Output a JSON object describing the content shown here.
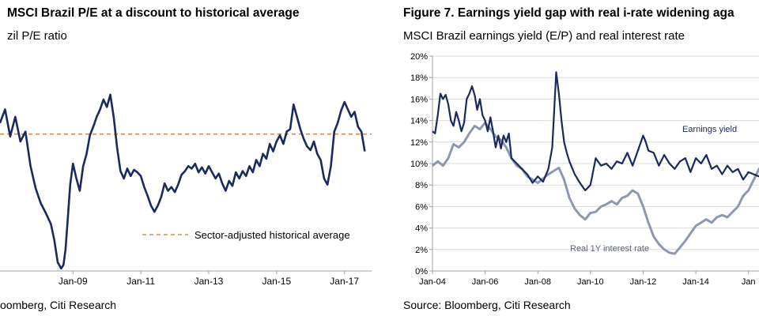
{
  "left": {
    "title": "MSCI Brazil P/E at a discount to historical average",
    "subtitle": "zil P/E ratio",
    "source": "oomberg, Citi Research"
  },
  "right": {
    "title": "Figure 7. Earnings yield gap with real i-rate widening aga",
    "subtitle": "MSCI Brazil earnings yield (E/P) and real interest rate",
    "source": "Source: Bloomberg, Citi Research"
  },
  "chart_data": [
    {
      "type": "line",
      "xlim": [
        2006.85,
        2017.8
      ],
      "ylim": [
        2.5,
        20.5
      ],
      "x_ticks": [
        {
          "label": "Jan-09",
          "x": 2009.0
        },
        {
          "label": "Jan-11",
          "x": 2011.0
        },
        {
          "label": "Jan-13",
          "x": 2013.0
        },
        {
          "label": "Jan-15",
          "x": 2015.0
        },
        {
          "label": "Jan-17",
          "x": 2017.0
        }
      ],
      "colors": {
        "pe": "#1b2a5e",
        "average": "#e8883a"
      },
      "reference_line": {
        "name": "Sector-adjusted historical average",
        "value": 13.6
      },
      "series": [
        {
          "key": "pe",
          "x": [
            2006.85,
            2007.0,
            2007.15,
            2007.3,
            2007.45,
            2007.6,
            2007.75,
            2007.9,
            2008.05,
            2008.2,
            2008.35,
            2008.45,
            2008.55,
            2008.65,
            2008.72,
            2008.78,
            2008.85,
            2008.92,
            2009.0,
            2009.1,
            2009.2,
            2009.3,
            2009.4,
            2009.5,
            2009.6,
            2009.7,
            2009.8,
            2009.9,
            2010.0,
            2010.1,
            2010.2,
            2010.3,
            2010.4,
            2010.5,
            2010.6,
            2010.7,
            2010.8,
            2010.9,
            2011.0,
            2011.1,
            2011.2,
            2011.3,
            2011.4,
            2011.5,
            2011.6,
            2011.7,
            2011.8,
            2011.9,
            2012.0,
            2012.1,
            2012.2,
            2012.3,
            2012.4,
            2012.5,
            2012.6,
            2012.7,
            2012.8,
            2012.9,
            2013.0,
            2013.1,
            2013.2,
            2013.3,
            2013.4,
            2013.5,
            2013.6,
            2013.7,
            2013.8,
            2013.9,
            2014.0,
            2014.1,
            2014.2,
            2014.3,
            2014.4,
            2014.5,
            2014.6,
            2014.7,
            2014.8,
            2014.9,
            2015.0,
            2015.1,
            2015.2,
            2015.3,
            2015.4,
            2015.5,
            2015.6,
            2015.7,
            2015.8,
            2015.9,
            2016.0,
            2016.1,
            2016.2,
            2016.3,
            2016.4,
            2016.5,
            2016.6,
            2016.7,
            2016.8,
            2016.9,
            2017.0,
            2017.1,
            2017.2,
            2017.3,
            2017.4,
            2017.5,
            2017.6
          ],
          "values": [
            14.5,
            15.6,
            13.4,
            15.0,
            13.0,
            13.8,
            11.0,
            9.2,
            8.0,
            7.2,
            6.3,
            5.0,
            3.2,
            2.7,
            3.0,
            4.2,
            6.8,
            9.5,
            11.2,
            10.0,
            9.0,
            11.0,
            12.0,
            13.5,
            14.2,
            15.0,
            15.6,
            16.4,
            15.8,
            16.8,
            15.0,
            12.5,
            10.6,
            10.0,
            10.8,
            10.2,
            10.7,
            10.5,
            10.2,
            9.3,
            8.6,
            7.8,
            7.3,
            7.8,
            8.5,
            9.6,
            9.0,
            9.3,
            8.9,
            9.5,
            10.3,
            10.6,
            11.0,
            10.8,
            11.2,
            10.5,
            10.9,
            10.4,
            11.0,
            10.5,
            10.0,
            10.4,
            9.6,
            9.0,
            9.8,
            9.4,
            10.5,
            10.0,
            10.6,
            10.2,
            11.0,
            10.5,
            11.5,
            11.0,
            12.0,
            11.6,
            12.8,
            12.2,
            13.0,
            13.5,
            12.8,
            13.8,
            14.0,
            16.0,
            15.0,
            14.0,
            13.2,
            12.6,
            12.3,
            13.0,
            12.0,
            11.5,
            10.0,
            9.5,
            11.0,
            13.8,
            14.5,
            15.5,
            16.2,
            15.6,
            15.0,
            15.4,
            14.2,
            13.8,
            12.2
          ]
        }
      ]
    },
    {
      "type": "line",
      "xlim": [
        2004.0,
        2016.85
      ],
      "ylim": [
        0,
        20
      ],
      "y_ticks": [
        0,
        2,
        4,
        6,
        8,
        10,
        12,
        14,
        16,
        18,
        20
      ],
      "y_tick_labels": [
        "0%",
        "2%",
        "4%",
        "6%",
        "8%",
        "10%",
        "12%",
        "14%",
        "16%",
        "18%",
        "20%"
      ],
      "x_ticks": [
        {
          "label": "Jan-04",
          "x": 2004.0
        },
        {
          "label": "Jan-06",
          "x": 2006.0
        },
        {
          "label": "Jan-08",
          "x": 2008.0
        },
        {
          "label": "Jan-10",
          "x": 2010.0
        },
        {
          "label": "Jan-12",
          "x": 2012.0
        },
        {
          "label": "Jan-14",
          "x": 2014.0
        },
        {
          "label": "Jan",
          "x": 2016.0
        }
      ],
      "colors": {
        "earnings_yield": "#1b2a5e",
        "real_rate": "#8c99ad",
        "axis": "#a0a0a0",
        "grid": "#d9d9d9"
      },
      "series": [
        {
          "key": "earnings_yield",
          "name": "Earnings yield",
          "x": [
            2004.0,
            2004.1,
            2004.2,
            2004.3,
            2004.4,
            2004.5,
            2004.6,
            2004.7,
            2004.8,
            2004.9,
            2005.0,
            2005.1,
            2005.2,
            2005.3,
            2005.4,
            2005.5,
            2005.6,
            2005.7,
            2005.8,
            2005.9,
            2006.0,
            2006.1,
            2006.2,
            2006.3,
            2006.4,
            2006.5,
            2006.6,
            2006.7,
            2006.8,
            2006.9,
            2007.0,
            2007.2,
            2007.4,
            2007.6,
            2007.8,
            2008.0,
            2008.2,
            2008.4,
            2008.55,
            2008.7,
            2008.8,
            2008.9,
            2009.0,
            2009.1,
            2009.2,
            2009.4,
            2009.6,
            2009.8,
            2010.0,
            2010.2,
            2010.4,
            2010.6,
            2010.8,
            2011.0,
            2011.2,
            2011.4,
            2011.6,
            2011.8,
            2012.0,
            2012.1,
            2012.2,
            2012.4,
            2012.6,
            2012.8,
            2013.0,
            2013.2,
            2013.4,
            2013.6,
            2013.8,
            2014.0,
            2014.2,
            2014.4,
            2014.6,
            2014.8,
            2015.0,
            2015.2,
            2015.4,
            2015.6,
            2015.8,
            2016.0,
            2016.2,
            2016.4,
            2016.6,
            2016.8
          ],
          "values": [
            13.0,
            12.8,
            14.5,
            16.5,
            16.0,
            16.4,
            15.5,
            14.0,
            13.5,
            14.8,
            14.0,
            13.0,
            13.8,
            16.0,
            16.5,
            17.2,
            16.4,
            15.0,
            16.0,
            14.5,
            14.0,
            13.0,
            14.3,
            13.0,
            11.5,
            12.6,
            11.4,
            12.6,
            12.0,
            12.8,
            10.5,
            10.0,
            9.5,
            9.0,
            8.2,
            8.8,
            8.3,
            9.5,
            11.5,
            18.5,
            16.5,
            14.0,
            12.0,
            11.0,
            10.2,
            9.0,
            8.2,
            7.5,
            8.0,
            10.5,
            9.8,
            10.0,
            9.5,
            10.2,
            10.0,
            11.0,
            9.8,
            11.2,
            12.6,
            12.0,
            11.2,
            11.0,
            9.8,
            10.8,
            10.0,
            9.5,
            10.2,
            10.5,
            9.2,
            10.5,
            10.0,
            10.8,
            9.5,
            9.8,
            9.0,
            9.8,
            9.2,
            9.5,
            8.5,
            9.2,
            9.0,
            8.8,
            9.5,
            9.0
          ]
        },
        {
          "key": "real_rate",
          "name": "Real 1Y interest rate",
          "x": [
            2004.0,
            2004.2,
            2004.4,
            2004.6,
            2004.8,
            2005.0,
            2005.2,
            2005.4,
            2005.6,
            2005.8,
            2006.0,
            2006.2,
            2006.4,
            2006.6,
            2006.8,
            2007.0,
            2007.2,
            2007.4,
            2007.6,
            2007.8,
            2008.0,
            2008.2,
            2008.4,
            2008.6,
            2008.8,
            2009.0,
            2009.2,
            2009.4,
            2009.6,
            2009.8,
            2010.0,
            2010.2,
            2010.4,
            2010.6,
            2010.8,
            2011.0,
            2011.2,
            2011.4,
            2011.6,
            2011.8,
            2012.0,
            2012.2,
            2012.4,
            2012.6,
            2012.8,
            2013.0,
            2013.2,
            2013.4,
            2013.6,
            2013.8,
            2014.0,
            2014.2,
            2014.4,
            2014.6,
            2014.8,
            2015.0,
            2015.2,
            2015.4,
            2015.6,
            2015.8,
            2016.0,
            2016.2,
            2016.4,
            2016.6,
            2016.8
          ],
          "values": [
            9.8,
            10.2,
            9.8,
            10.5,
            11.8,
            11.5,
            12.0,
            12.8,
            13.5,
            13.2,
            13.8,
            13.2,
            12.5,
            12.2,
            11.5,
            10.5,
            9.8,
            9.5,
            8.8,
            8.5,
            8.2,
            8.6,
            9.0,
            9.3,
            9.6,
            8.5,
            6.8,
            5.8,
            5.2,
            4.8,
            5.4,
            5.5,
            6.0,
            6.2,
            6.5,
            6.2,
            6.8,
            7.0,
            7.5,
            7.2,
            6.0,
            4.5,
            3.2,
            2.5,
            2.0,
            1.7,
            1.6,
            2.2,
            2.8,
            3.5,
            4.2,
            4.5,
            4.8,
            4.5,
            5.0,
            5.2,
            5.0,
            5.5,
            6.0,
            7.0,
            7.5,
            8.5,
            9.5,
            9.0,
            8.8
          ]
        }
      ]
    }
  ]
}
